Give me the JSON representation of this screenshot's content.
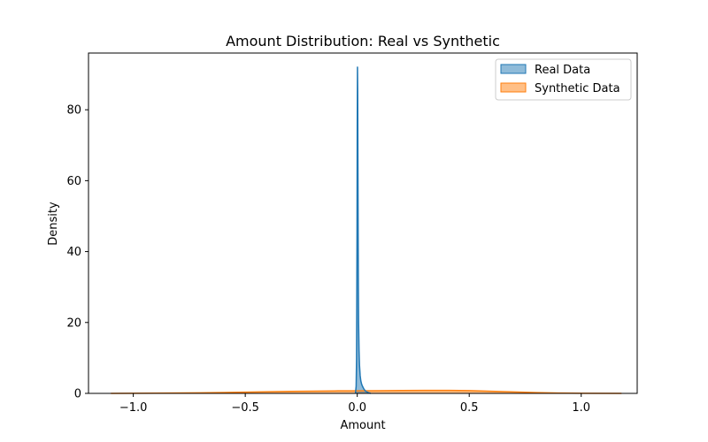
{
  "chart_data": {
    "type": "area",
    "title": "Amount Distribution: Real vs Synthetic",
    "xlabel": "Amount",
    "ylabel": "Density",
    "xlim": [
      -1.2,
      1.25
    ],
    "ylim": [
      0,
      96
    ],
    "xticks": [
      -1.0,
      -0.5,
      0.0,
      0.5,
      1.0
    ],
    "xtick_labels": [
      "−1.0",
      "−0.5",
      "0.0",
      "0.5",
      "1.0"
    ],
    "yticks": [
      0,
      20,
      40,
      60,
      80
    ],
    "ytick_labels": [
      "0",
      "20",
      "40",
      "60",
      "80"
    ],
    "grid": false,
    "legend_position": "top-right",
    "series": [
      {
        "name": "Real Data",
        "color": "#1f77b4",
        "fill": "#1f77b4",
        "x": [
          -0.008,
          -0.005,
          -0.003,
          -0.001,
          0.0,
          0.001,
          0.002,
          0.003,
          0.004,
          0.005,
          0.006,
          0.008,
          0.01,
          0.013,
          0.016,
          0.02,
          0.025,
          0.03,
          0.035,
          0.04,
          0.05,
          0.06
        ],
        "y": [
          0,
          2,
          10,
          45,
          75,
          92,
          85,
          65,
          45,
          30,
          20,
          12,
          8,
          5,
          3.5,
          2.5,
          1.8,
          1.2,
          0.8,
          0.5,
          0.2,
          0
        ]
      },
      {
        "name": "Synthetic Data",
        "color": "#ff7f0e",
        "fill": "#ff7f0e",
        "x": [
          -1.1,
          -0.9,
          -0.7,
          -0.5,
          -0.3,
          -0.1,
          0.0,
          0.1,
          0.2,
          0.3,
          0.4,
          0.5,
          0.6,
          0.7,
          0.8,
          0.9,
          1.0,
          1.18
        ],
        "y": [
          0.01,
          0.05,
          0.15,
          0.35,
          0.55,
          0.7,
          0.72,
          0.75,
          0.8,
          0.85,
          0.85,
          0.78,
          0.6,
          0.4,
          0.22,
          0.1,
          0.04,
          0.005
        ]
      }
    ]
  }
}
